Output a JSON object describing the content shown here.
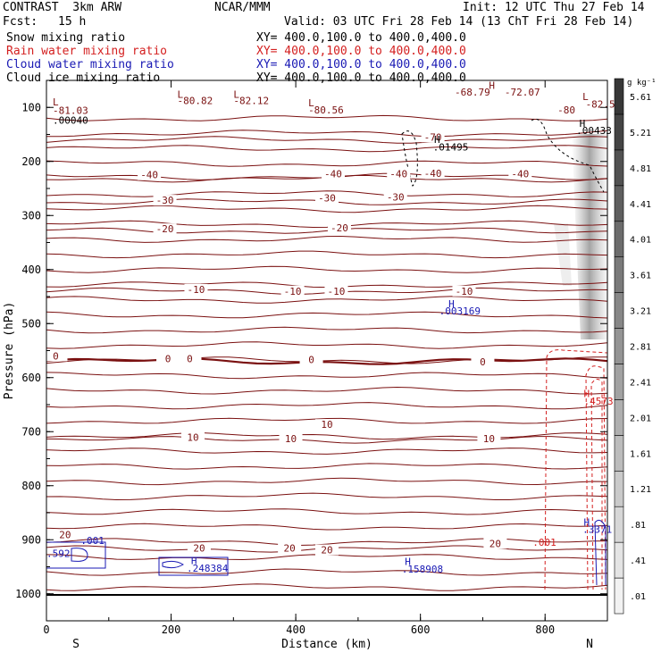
{
  "header": {
    "model": "CONTRAST  3km ARW",
    "center": "NCAR/MMM",
    "init": "Init: 12 UTC Thu 27 Feb 14",
    "fcst_label": "Fcst:",
    "fcst_value": "15 h",
    "valid": "Valid: 03 UTC Fri 28 Feb 14 (13 ChT Fri 28 Feb 14)"
  },
  "colors": {
    "snow": "#000000",
    "rain": "#d42020",
    "cloud_water": "#1a1ab4",
    "cloud_ice": "#000000",
    "temperature": "#7a1010"
  },
  "fields": [
    {
      "name": "Snow mixing ratio",
      "xy": "XY= 400.0,100.0 to 400.0,400.0"
    },
    {
      "name": "Rain water mixing ratio",
      "xy": "XY= 400.0,100.0 to 400.0,400.0"
    },
    {
      "name": "Cloud water mixing ratio",
      "xy": "XY= 400.0,100.0 to 400.0,400.0"
    },
    {
      "name": "Cloud ice mixing ratio",
      "xy": "XY= 400.0,100.0 to 400.0,400.0"
    }
  ],
  "chart_data": {
    "type": "contour-cross-section",
    "xlabel": "Distance (km)",
    "ylabel": "Pressure (hPa)",
    "xlim": [
      0,
      900
    ],
    "ylim": [
      1050,
      50
    ],
    "x_ticks": [
      0,
      200,
      400,
      600,
      800
    ],
    "y_ticks": [
      100,
      200,
      300,
      400,
      500,
      600,
      700,
      800,
      900,
      1000
    ],
    "end_labels": {
      "left": "S",
      "right": "N"
    },
    "colorbar": {
      "unit": "g kg⁻¹",
      "labels": [
        ".01",
        ".41",
        ".81",
        "1.21",
        "1.61",
        "2.01",
        "2.41",
        "2.81",
        "3.21",
        "3.61",
        "4.01",
        "4.41",
        "4.81",
        "5.21",
        "5.61"
      ]
    },
    "temperature_isotherms": [
      {
        "label": "-70",
        "p": 160
      },
      {
        "label": "-40",
        "p": 228
      },
      {
        "label": "-30",
        "p": 275
      },
      {
        "label": "-20",
        "p": 328
      },
      {
        "label": "-10",
        "p": 440
      },
      {
        "label": "0",
        "p": 570
      },
      {
        "label": "10",
        "p": 715
      },
      {
        "label": "20",
        "p": 917
      }
    ],
    "isotherm_labels": [
      {
        "text": "-40",
        "x": 165,
        "p": 228
      },
      {
        "text": "-40",
        "x": 460,
        "p": 226
      },
      {
        "text": "-40",
        "x": 565,
        "p": 226
      },
      {
        "text": "-40",
        "x": 620,
        "p": 225
      },
      {
        "text": "-40",
        "x": 760,
        "p": 226
      },
      {
        "text": "-30",
        "x": 190,
        "p": 275
      },
      {
        "text": "-30",
        "x": 450,
        "p": 271
      },
      {
        "text": "-30",
        "x": 560,
        "p": 269
      },
      {
        "text": "-20",
        "x": 190,
        "p": 328
      },
      {
        "text": "-20",
        "x": 470,
        "p": 326
      },
      {
        "text": "-10",
        "x": 240,
        "p": 440
      },
      {
        "text": "-10",
        "x": 395,
        "p": 443
      },
      {
        "text": "-10",
        "x": 465,
        "p": 443
      },
      {
        "text": "-10",
        "x": 670,
        "p": 443
      },
      {
        "text": "0",
        "x": 15,
        "p": 563
      },
      {
        "text": "0",
        "x": 195,
        "p": 568
      },
      {
        "text": "0",
        "x": 230,
        "p": 568
      },
      {
        "text": "0",
        "x": 425,
        "p": 570
      },
      {
        "text": "0",
        "x": 700,
        "p": 574
      },
      {
        "text": "10",
        "x": 235,
        "p": 714
      },
      {
        "text": "10",
        "x": 392,
        "p": 716
      },
      {
        "text": "10",
        "x": 450,
        "p": 690
      },
      {
        "text": "10",
        "x": 710,
        "p": 716
      },
      {
        "text": "20",
        "x": 30,
        "p": 894
      },
      {
        "text": "20",
        "x": 245,
        "p": 919
      },
      {
        "text": "20",
        "x": 390,
        "p": 919
      },
      {
        "text": "20",
        "x": 450,
        "p": 922
      },
      {
        "text": "20",
        "x": 720,
        "p": 910
      },
      {
        "text": "-70",
        "x": 620,
        "p": 158
      }
    ],
    "extrema_labels": [
      {
        "text": "-81.03",
        "x": 10,
        "p": 112,
        "color": "temperature"
      },
      {
        "text": ".00040",
        "x": 10,
        "p": 130,
        "color": "snow"
      },
      {
        "text": "-80.82",
        "x": 210,
        "p": 94,
        "color": "temperature"
      },
      {
        "text": "-82.12",
        "x": 300,
        "p": 94,
        "color": "temperature"
      },
      {
        "text": "-80.56",
        "x": 420,
        "p": 111,
        "color": "temperature"
      },
      {
        "text": "-68.79",
        "x": 655,
        "p": 78,
        "color": "temperature"
      },
      {
        "text": "-72.07",
        "x": 735,
        "p": 78,
        "color": "temperature"
      },
      {
        "text": "-82.5",
        "x": 865,
        "p": 100,
        "color": "temperature"
      },
      {
        "text": "-80",
        "x": 820,
        "p": 111,
        "color": "temperature"
      },
      {
        "text": ".01495",
        "x": 620,
        "p": 180,
        "color": "snow"
      },
      {
        "text": ".00433",
        "x": 850,
        "p": 149,
        "color": "snow"
      },
      {
        "text": ".003169",
        "x": 630,
        "p": 483,
        "color": "cloud_water"
      },
      {
        "text": ".4573",
        "x": 862,
        "p": 650,
        "color": "rain"
      },
      {
        "text": ".001",
        "x": 780,
        "p": 911,
        "color": "rain"
      },
      {
        "text": ".3371",
        "x": 860,
        "p": 887,
        "color": "cloud_water"
      },
      {
        "text": ".001",
        "x": 55,
        "p": 908,
        "color": "cloud_water"
      },
      {
        "text": ".592",
        "x": 0,
        "p": 932,
        "color": "cloud_water"
      },
      {
        "text": ".248384",
        "x": 225,
        "p": 959,
        "color": "cloud_water"
      },
      {
        "text": ".158908",
        "x": 570,
        "p": 961,
        "color": "cloud_water"
      }
    ],
    "marker_labels": [
      {
        "text": "L",
        "x": 10,
        "p": 96,
        "color": "temperature"
      },
      {
        "text": "L",
        "x": 210,
        "p": 82,
        "color": "temperature"
      },
      {
        "text": "L",
        "x": 300,
        "p": 82,
        "color": "temperature"
      },
      {
        "text": "L",
        "x": 420,
        "p": 98,
        "color": "temperature"
      },
      {
        "text": "H",
        "x": 710,
        "p": 66,
        "color": "temperature"
      },
      {
        "text": "L",
        "x": 860,
        "p": 86,
        "color": "temperature"
      },
      {
        "text": "H",
        "x": 855,
        "p": 136,
        "color": "snow"
      },
      {
        "text": "H",
        "x": 622,
        "p": 166,
        "color": "snow"
      },
      {
        "text": "H",
        "x": 645,
        "p": 470,
        "color": "cloud_water"
      },
      {
        "text": "H",
        "x": 862,
        "p": 636,
        "color": "rain"
      },
      {
        "text": "H",
        "x": 862,
        "p": 874,
        "color": "cloud_water"
      },
      {
        "text": "H",
        "x": 232,
        "p": 945,
        "color": "cloud_water"
      },
      {
        "text": "H",
        "x": 575,
        "p": 947,
        "color": "cloud_water"
      }
    ]
  }
}
